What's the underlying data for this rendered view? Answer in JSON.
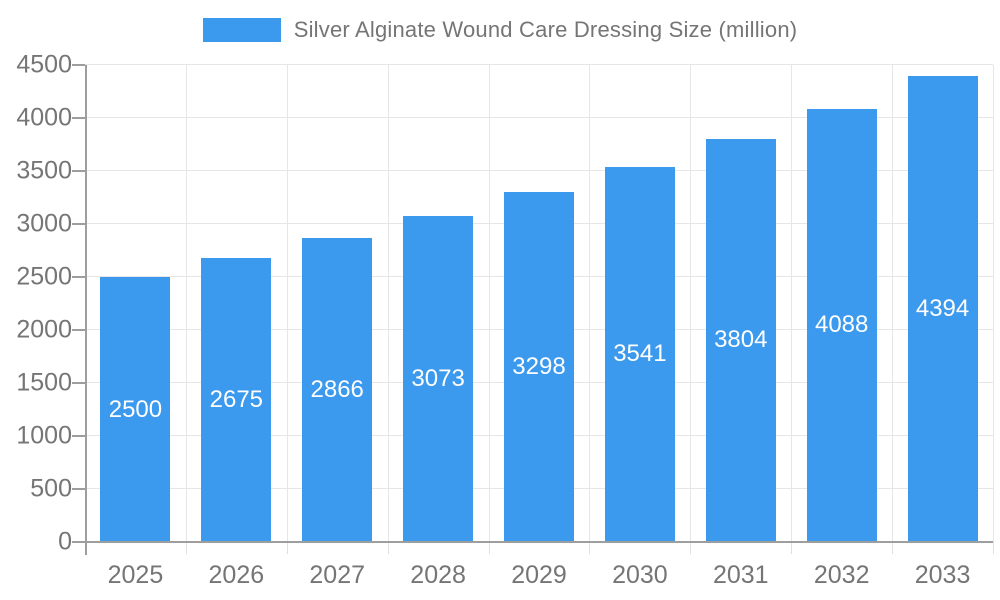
{
  "legend": {
    "label": "Silver Alginate Wound Care Dressing Size (million)"
  },
  "colors": {
    "bar": "#3b99ee",
    "bar_label": "#ffffff",
    "axis_text": "#757575",
    "gridline": "#e6e6e6",
    "axis_line": "#9e9e9e",
    "background": "#ffffff"
  },
  "chart_data": {
    "type": "bar",
    "title": "Silver Alginate Wound Care Dressing Size (million)",
    "categories": [
      "2025",
      "2026",
      "2027",
      "2028",
      "2029",
      "2030",
      "2031",
      "2032",
      "2033"
    ],
    "values": [
      2500,
      2675,
      2866,
      3073,
      3298,
      3541,
      3804,
      4088,
      4394
    ],
    "xlabel": "",
    "ylabel": "",
    "ylim": [
      0,
      4500
    ],
    "ytick_step": 500,
    "ytick_labels": [
      "0",
      "500",
      "1000",
      "1500",
      "2000",
      "2500",
      "3000",
      "3500",
      "4000",
      "4500"
    ],
    "grid": true,
    "legend_position": "top",
    "bar_value_labels": "inside-center"
  }
}
